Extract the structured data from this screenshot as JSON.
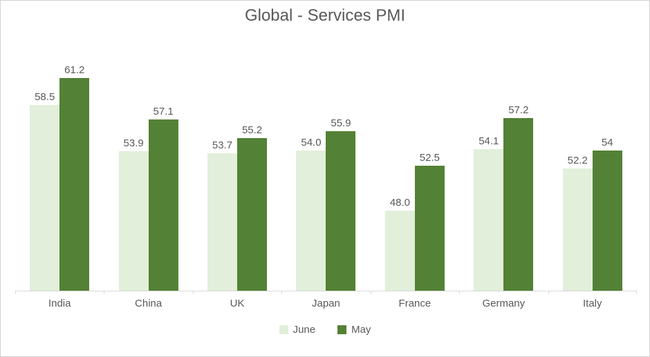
{
  "title": "Global - Services PMI",
  "chart_data": {
    "type": "bar",
    "title": "Global - Services PMI",
    "categories": [
      "India",
      "China",
      "UK",
      "Japan",
      "France",
      "Germany",
      "Italy"
    ],
    "series": [
      {
        "name": "June",
        "color": "#e2efda",
        "values": [
          58.5,
          53.9,
          53.7,
          54.0,
          48.0,
          54.1,
          52.2
        ],
        "labels": [
          "58.5",
          "53.9",
          "53.7",
          "54.0",
          "48.0",
          "54.1",
          "52.2"
        ]
      },
      {
        "name": "May",
        "color": "#538135",
        "values": [
          61.2,
          57.1,
          55.2,
          55.9,
          52.5,
          57.2,
          54
        ],
        "labels": [
          "61.2",
          "57.1",
          "55.2",
          "55.9",
          "52.5",
          "57.2",
          "54"
        ]
      }
    ],
    "xlabel": "",
    "ylabel": "",
    "ylim": [
      40,
      65
    ],
    "grid": false,
    "legend_position": "bottom",
    "axis_color": "#d9d9d9",
    "text_color": "#595959",
    "background": "#ffffff"
  }
}
